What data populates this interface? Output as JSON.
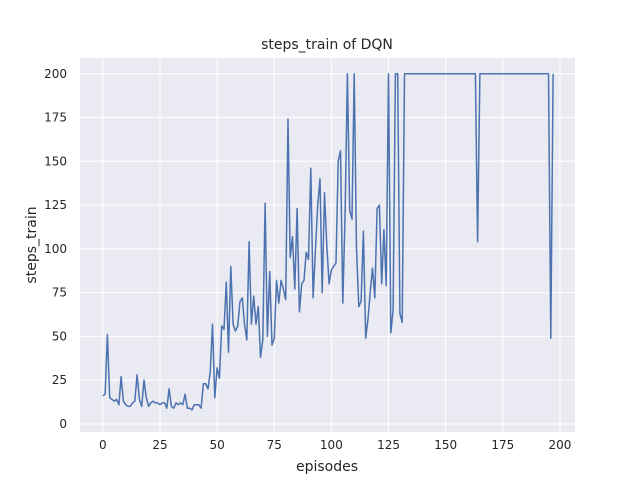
{
  "chart_data": {
    "type": "line",
    "title": "steps_train of DQN",
    "xlabel": "episodes",
    "ylabel": "steps_train",
    "xlim": [
      -10,
      206.6
    ],
    "ylim": [
      -4.6,
      209
    ],
    "xticks": [
      0,
      25,
      50,
      75,
      100,
      125,
      150,
      175,
      200
    ],
    "yticks": [
      0,
      25,
      50,
      75,
      100,
      125,
      150,
      175,
      200
    ],
    "grid": true,
    "colors": {
      "line": "#4c72b0",
      "background": "#eaeaf2",
      "grid": "#ffffff"
    },
    "series": [
      {
        "values": [
          16,
          17,
          51,
          15,
          14,
          13,
          14,
          11,
          27,
          13,
          11,
          10,
          10,
          12,
          13,
          28,
          14,
          10,
          25,
          15,
          10,
          12,
          13,
          12,
          12,
          11,
          12,
          12,
          9,
          20,
          10,
          9,
          12,
          11,
          12,
          11,
          17,
          9,
          9,
          8,
          11,
          11,
          11,
          9,
          23,
          23,
          20,
          30,
          57,
          15,
          32,
          26,
          56,
          54,
          81,
          41,
          90,
          57,
          53,
          56,
          70,
          72,
          57,
          48,
          104,
          57,
          73,
          57,
          67,
          38,
          48,
          126,
          50,
          87,
          45,
          49,
          82,
          69,
          82,
          77,
          71,
          174,
          95,
          107,
          77,
          123,
          64,
          80,
          82,
          98,
          94,
          146,
          72,
          99,
          125,
          140,
          75,
          132,
          102,
          80,
          88,
          90,
          92,
          150,
          156,
          69,
          120,
          200,
          122,
          117,
          200,
          100,
          67,
          70,
          110,
          49,
          60,
          75,
          89,
          72,
          123,
          125,
          80,
          111,
          79,
          200,
          52,
          65,
          200,
          200,
          63,
          58,
          200,
          200,
          200,
          200,
          200,
          200,
          200,
          200,
          200,
          200,
          200,
          200,
          200,
          200,
          200,
          200,
          200,
          200,
          200,
          200,
          200,
          200,
          200,
          200,
          200,
          200,
          200,
          200,
          200,
          200,
          200,
          200,
          104,
          200,
          200,
          200,
          200,
          200,
          200,
          200,
          200,
          200,
          200,
          200,
          200,
          200,
          200,
          200,
          200,
          200,
          200,
          200,
          200,
          200,
          200,
          200,
          200,
          200,
          200,
          200,
          200,
          200,
          200,
          200,
          49,
          200
        ]
      }
    ]
  }
}
